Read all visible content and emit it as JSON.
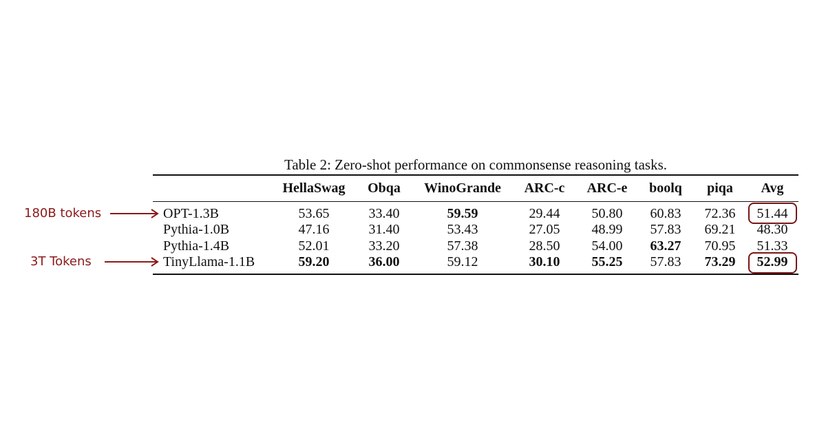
{
  "caption": "Table 2: Zero-shot performance on commonsense reasoning tasks.",
  "columns": [
    "",
    "HellaSwag",
    "Obqa",
    "WinoGrande",
    "ARC-c",
    "ARC-e",
    "boolq",
    "piqa",
    "Avg"
  ],
  "rows": [
    {
      "model": "OPT-1.3B",
      "values": [
        "53.65",
        "33.40",
        "59.59",
        "29.44",
        "50.80",
        "60.83",
        "72.36",
        "51.44"
      ],
      "bold": [
        false,
        false,
        true,
        false,
        false,
        false,
        false,
        false
      ]
    },
    {
      "model": "Pythia-1.0B",
      "values": [
        "47.16",
        "31.40",
        "53.43",
        "27.05",
        "48.99",
        "57.83",
        "69.21",
        "48.30"
      ],
      "bold": [
        false,
        false,
        false,
        false,
        false,
        false,
        false,
        false
      ]
    },
    {
      "model": "Pythia-1.4B",
      "values": [
        "52.01",
        "33.20",
        "57.38",
        "28.50",
        "54.00",
        "63.27",
        "70.95",
        "51.33"
      ],
      "bold": [
        false,
        false,
        false,
        false,
        false,
        true,
        false,
        false
      ]
    },
    {
      "model": "TinyLlama-1.1B",
      "values": [
        "59.20",
        "36.00",
        "59.12",
        "30.10",
        "55.25",
        "57.83",
        "73.29",
        "52.99"
      ],
      "bold": [
        true,
        true,
        false,
        true,
        true,
        false,
        true,
        true
      ]
    }
  ],
  "annotations": [
    {
      "label": "180B tokens",
      "row": 0,
      "color": "#8b1a1a"
    },
    {
      "label": "3T Tokens",
      "row": 3,
      "color": "#8b1a1a"
    }
  ],
  "highlighted_cells": [
    {
      "row": 0,
      "column": "Avg"
    },
    {
      "row": 3,
      "column": "Avg"
    }
  ],
  "colors": {
    "annotation": "#8b1a1a",
    "highlight_border": "#7a1515",
    "text": "#111111"
  }
}
